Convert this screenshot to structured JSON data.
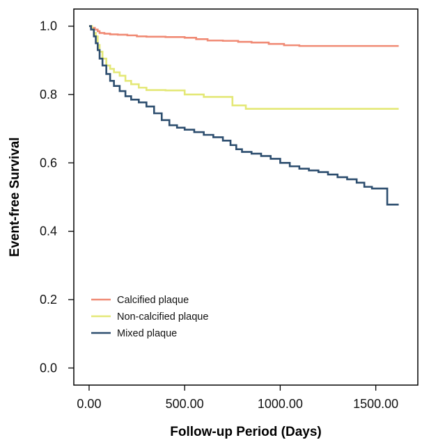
{
  "chart_data": {
    "type": "line",
    "title": "",
    "xlabel": "Follow-up Period (Days)",
    "ylabel": "Event-free Survival",
    "xlim": [
      -80,
      1720
    ],
    "ylim": [
      -0.05,
      1.05
    ],
    "x_ticks": [
      0,
      500,
      1000,
      1500
    ],
    "x_tick_labels": [
      "0.00",
      "500.00",
      "1000.00",
      "1500.00"
    ],
    "y_ticks": [
      0.0,
      0.2,
      0.4,
      0.6,
      0.8,
      1.0
    ],
    "y_tick_labels": [
      "0.0",
      "0.2",
      "0.4",
      "0.6",
      "0.8",
      "1.0"
    ],
    "grid": false,
    "legend_position": "lower-left",
    "series": [
      {
        "name": "Calcified plaque",
        "color": "#F08A74",
        "points": [
          [
            0,
            1.0
          ],
          [
            10,
            0.995
          ],
          [
            30,
            0.99
          ],
          [
            45,
            0.985
          ],
          [
            55,
            0.98
          ],
          [
            80,
            0.978
          ],
          [
            110,
            0.976
          ],
          [
            150,
            0.975
          ],
          [
            200,
            0.973
          ],
          [
            250,
            0.97
          ],
          [
            300,
            0.969
          ],
          [
            400,
            0.968
          ],
          [
            500,
            0.966
          ],
          [
            560,
            0.962
          ],
          [
            620,
            0.958
          ],
          [
            700,
            0.957
          ],
          [
            780,
            0.954
          ],
          [
            850,
            0.952
          ],
          [
            940,
            0.948
          ],
          [
            1020,
            0.944
          ],
          [
            1100,
            0.942
          ],
          [
            1300,
            0.942
          ],
          [
            1550,
            0.942
          ],
          [
            1620,
            0.942
          ]
        ]
      },
      {
        "name": "Non-calcified plaque",
        "color": "#E4E877",
        "points": [
          [
            0,
            1.0
          ],
          [
            15,
            0.99
          ],
          [
            25,
            0.98
          ],
          [
            35,
            0.97
          ],
          [
            45,
            0.945
          ],
          [
            55,
            0.925
          ],
          [
            70,
            0.905
          ],
          [
            90,
            0.885
          ],
          [
            110,
            0.875
          ],
          [
            130,
            0.865
          ],
          [
            160,
            0.855
          ],
          [
            190,
            0.84
          ],
          [
            220,
            0.83
          ],
          [
            260,
            0.82
          ],
          [
            300,
            0.813
          ],
          [
            400,
            0.812
          ],
          [
            500,
            0.8
          ],
          [
            600,
            0.793
          ],
          [
            700,
            0.793
          ],
          [
            750,
            0.768
          ],
          [
            820,
            0.758
          ],
          [
            900,
            0.758
          ],
          [
            1100,
            0.758
          ],
          [
            1400,
            0.758
          ],
          [
            1620,
            0.758
          ]
        ]
      },
      {
        "name": "Mixed plaque",
        "color": "#2C4D6E",
        "points": [
          [
            0,
            1.0
          ],
          [
            10,
            0.99
          ],
          [
            25,
            0.97
          ],
          [
            35,
            0.95
          ],
          [
            45,
            0.93
          ],
          [
            55,
            0.905
          ],
          [
            70,
            0.885
          ],
          [
            90,
            0.86
          ],
          [
            110,
            0.84
          ],
          [
            130,
            0.825
          ],
          [
            160,
            0.81
          ],
          [
            190,
            0.795
          ],
          [
            220,
            0.785
          ],
          [
            260,
            0.777
          ],
          [
            300,
            0.765
          ],
          [
            340,
            0.745
          ],
          [
            380,
            0.725
          ],
          [
            420,
            0.71
          ],
          [
            460,
            0.703
          ],
          [
            500,
            0.697
          ],
          [
            550,
            0.69
          ],
          [
            600,
            0.682
          ],
          [
            650,
            0.675
          ],
          [
            700,
            0.665
          ],
          [
            740,
            0.652
          ],
          [
            770,
            0.64
          ],
          [
            800,
            0.632
          ],
          [
            850,
            0.627
          ],
          [
            900,
            0.62
          ],
          [
            950,
            0.612
          ],
          [
            1000,
            0.6
          ],
          [
            1050,
            0.59
          ],
          [
            1100,
            0.583
          ],
          [
            1150,
            0.578
          ],
          [
            1200,
            0.573
          ],
          [
            1250,
            0.566
          ],
          [
            1300,
            0.558
          ],
          [
            1350,
            0.552
          ],
          [
            1400,
            0.542
          ],
          [
            1440,
            0.53
          ],
          [
            1480,
            0.525
          ],
          [
            1520,
            0.525
          ],
          [
            1555,
            0.525
          ],
          [
            1560,
            0.478
          ],
          [
            1580,
            0.478
          ],
          [
            1620,
            0.478
          ]
        ]
      }
    ]
  }
}
